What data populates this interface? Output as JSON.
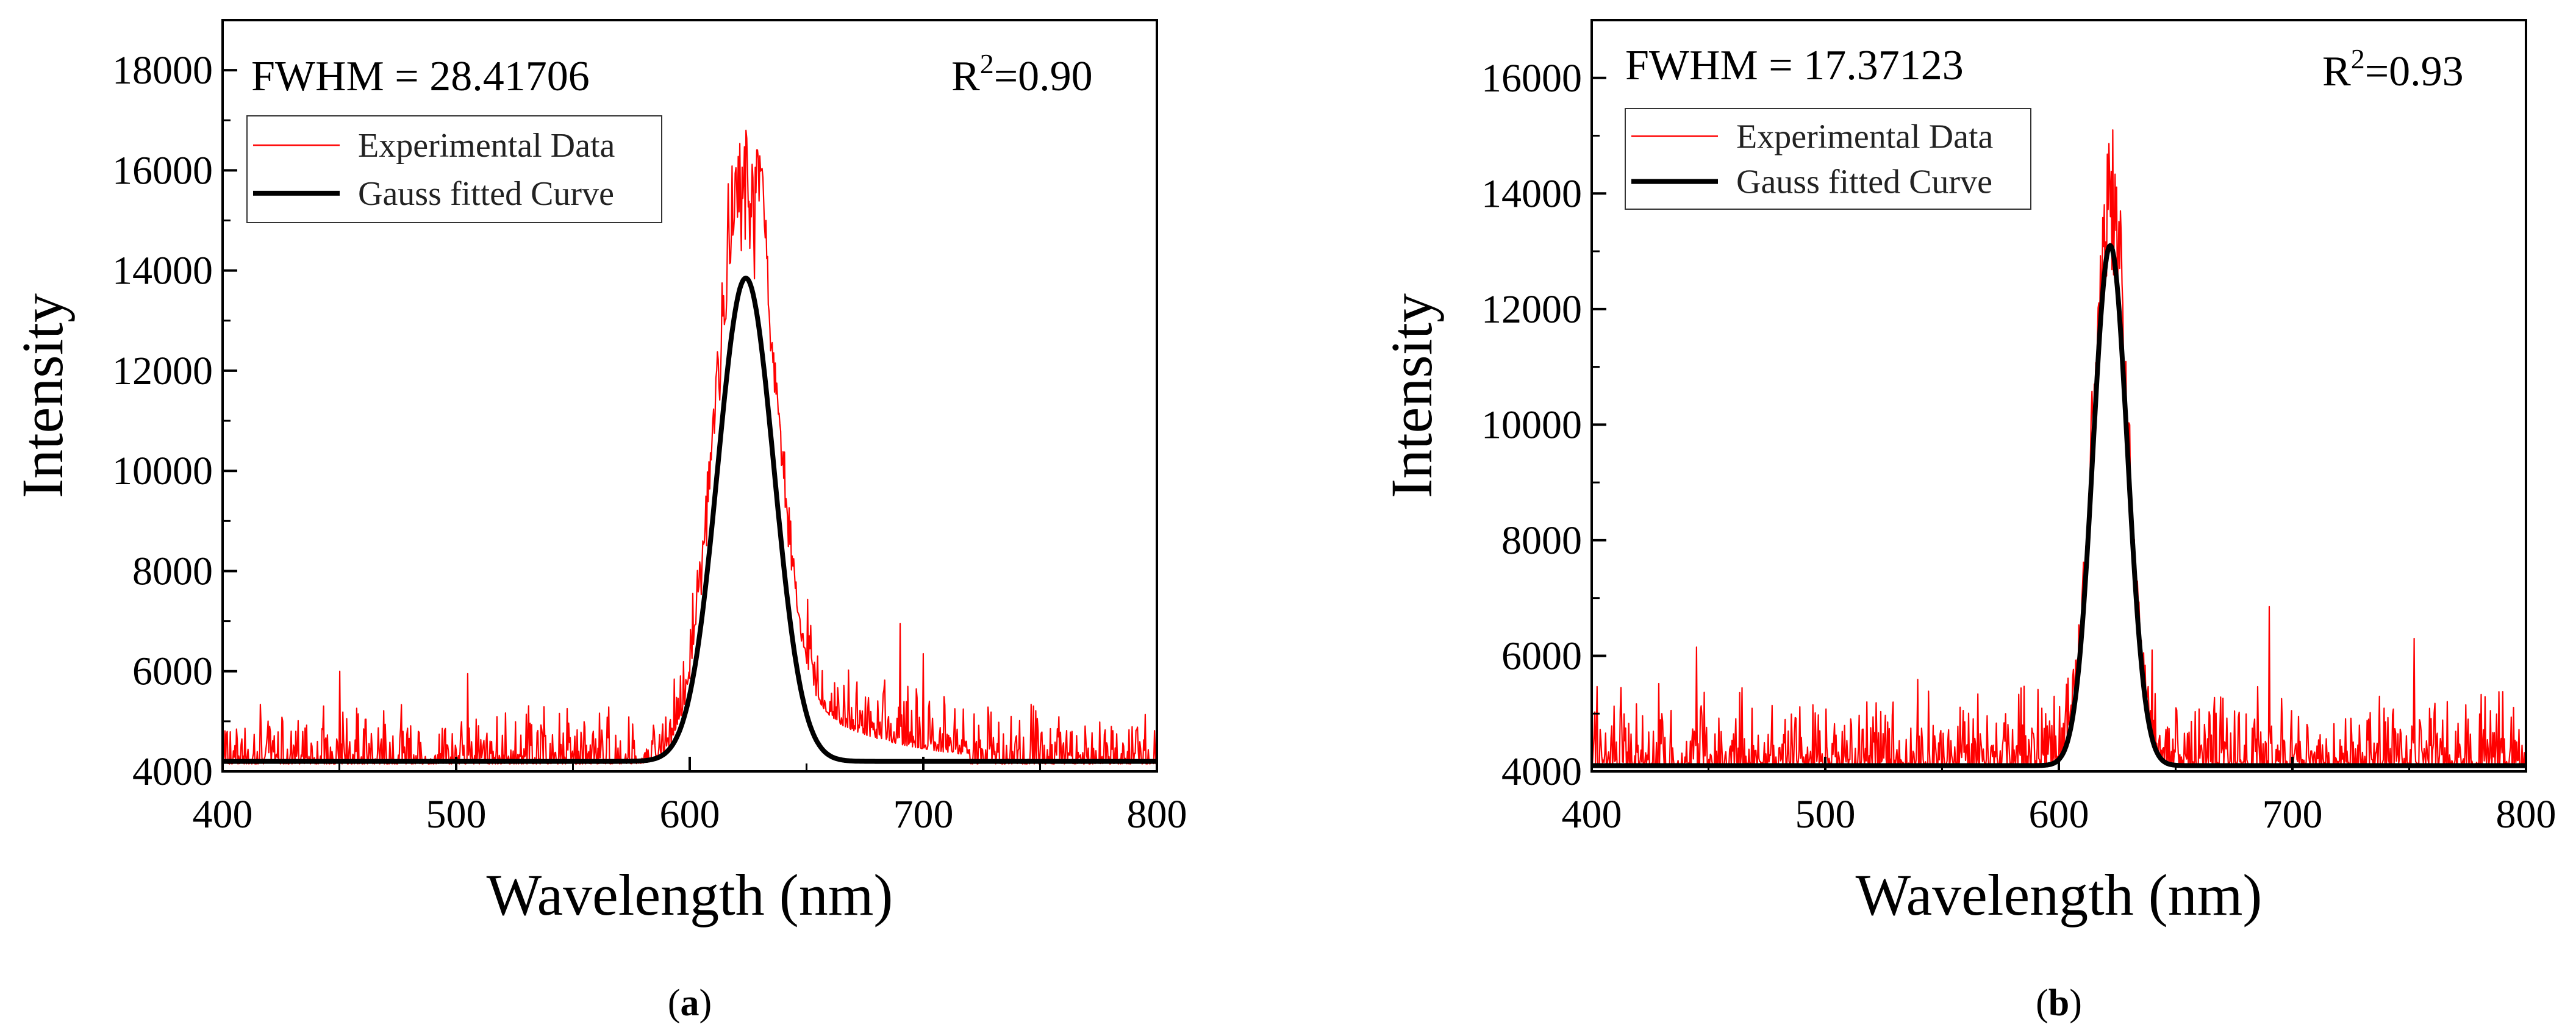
{
  "colors": {
    "experimental": "#ff0000",
    "fit": "#000000",
    "axis": "#000000",
    "background": "#ffffff"
  },
  "chart_data": [
    {
      "id": "a",
      "type": "line",
      "caption_letter": "a",
      "xlabel": "Wavelength (nm)",
      "ylabel": "Intensity",
      "xlim": [
        400,
        800
      ],
      "ylim": [
        4000,
        19000
      ],
      "xticks": [
        400,
        500,
        600,
        700,
        800
      ],
      "yticks": [
        4000,
        6000,
        8000,
        10000,
        12000,
        14000,
        16000,
        18000
      ],
      "fwhm_text": "FWHM = 28.41706",
      "r2_prefix": "R",
      "r2_sup": "2",
      "r2_value": "=0.90",
      "legend_position": "top-left",
      "series": [
        {
          "name": "Experimental Data",
          "kind": "noisy",
          "baseline": 4150,
          "noise_amp": 1000,
          "noise_peaks": [
            [
              450,
              6000
            ],
            [
              505,
              5950
            ],
            [
              690,
              6950
            ],
            [
              700,
              6350
            ]
          ],
          "peak_center": 623,
          "peak_amp": 11000,
          "peak_sigma": 12,
          "peak_max": 16800,
          "tail": {
            "start": 628,
            "end": 720,
            "amp": 2000,
            "decay": 38
          }
        },
        {
          "name": "Gauss fitted Curve",
          "kind": "gauss",
          "y0": 4200,
          "xc": 624,
          "amp": 9650,
          "fwhm": 28.41706
        }
      ]
    },
    {
      "id": "b",
      "type": "line",
      "caption_letter": "b",
      "xlabel": "Wavelength (nm)",
      "ylabel": "Intensity",
      "xlim": [
        400,
        800
      ],
      "ylim": [
        4000,
        17000
      ],
      "xticks": [
        400,
        500,
        600,
        700,
        800
      ],
      "yticks": [
        4000,
        6000,
        8000,
        10000,
        12000,
        14000,
        16000
      ],
      "fwhm_text": "FWHM = 17.37123",
      "r2_prefix": "R",
      "r2_sup": "2",
      "r2_value": "=0.93",
      "legend_position": "top-left",
      "series": [
        {
          "name": "Experimental Data",
          "kind": "noisy",
          "baseline": 4100,
          "noise_amp": 1100,
          "noise_peaks": [
            [
              445,
              6150
            ],
            [
              690,
              6850
            ],
            [
              752,
              6300
            ],
            [
              640,
              6100
            ]
          ],
          "peak_center": 622,
          "peak_amp": 9200,
          "peak_sigma": 7.4,
          "peak_max": 15100,
          "tail": null
        },
        {
          "name": "Gauss fitted Curve",
          "kind": "gauss",
          "y0": 4100,
          "xc": 622,
          "amp": 9000,
          "fwhm": 17.37123
        }
      ]
    }
  ]
}
